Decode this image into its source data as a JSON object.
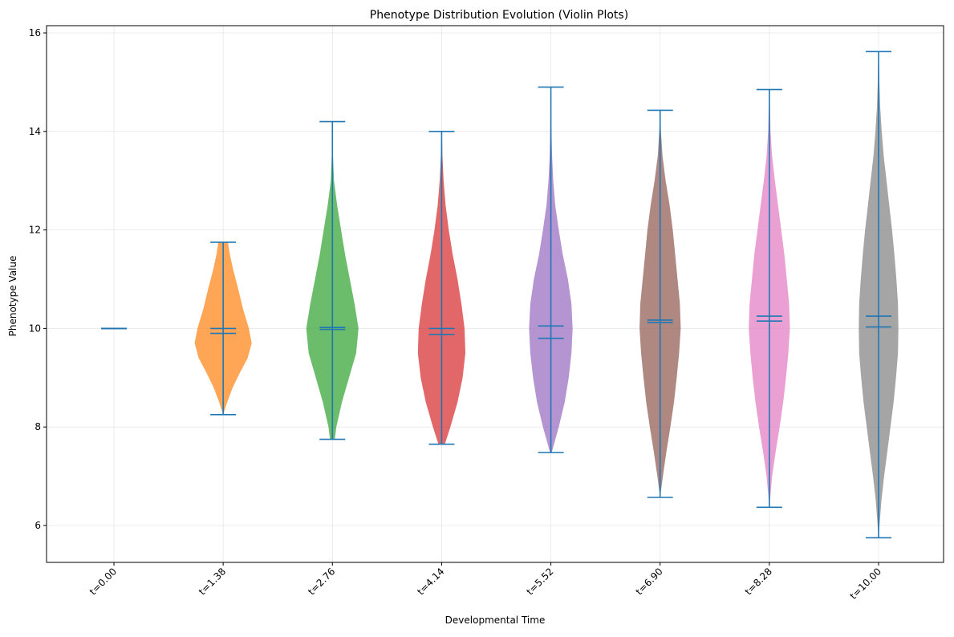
{
  "chart_data": {
    "type": "violin",
    "title": "Phenotype Distribution Evolution (Violin Plots)",
    "xlabel": "Developmental Time",
    "ylabel": "Phenotype Value",
    "ylim": [
      5.25,
      16.1
    ],
    "yticks": [
      6,
      8,
      10,
      12,
      14,
      16
    ],
    "grid": true,
    "categories": [
      "t=0.00",
      "t=1.38",
      "t=2.76",
      "t=4.14",
      "t=5.52",
      "t=6.90",
      "t=8.28",
      "t=10.00"
    ],
    "series": [
      {
        "category": "t=0.00",
        "color": "#1f77b4",
        "min": 10.0,
        "max": 10.0,
        "mean": 10.0,
        "median": 10.0,
        "density": []
      },
      {
        "category": "t=1.38",
        "color": "#ff7f0e",
        "min": 8.25,
        "max": 11.75,
        "mean": 10.0,
        "median": 9.9,
        "density": [
          [
            8.25,
            0.0
          ],
          [
            8.5,
            0.1
          ],
          [
            8.8,
            0.24
          ],
          [
            9.1,
            0.42
          ],
          [
            9.4,
            0.62
          ],
          [
            9.7,
            0.72
          ],
          [
            10.0,
            0.65
          ],
          [
            10.4,
            0.5
          ],
          [
            10.8,
            0.38
          ],
          [
            11.2,
            0.25
          ],
          [
            11.5,
            0.17
          ],
          [
            11.75,
            0.12
          ]
        ]
      },
      {
        "category": "t=2.76",
        "color": "#2ca02c",
        "min": 7.75,
        "max": 14.2,
        "mean": 10.02,
        "median": 9.98,
        "density": [
          [
            7.75,
            0.06
          ],
          [
            8.0,
            0.1
          ],
          [
            8.5,
            0.24
          ],
          [
            9.0,
            0.42
          ],
          [
            9.5,
            0.6
          ],
          [
            10.0,
            0.66
          ],
          [
            10.5,
            0.56
          ],
          [
            11.0,
            0.44
          ],
          [
            11.5,
            0.32
          ],
          [
            12.0,
            0.22
          ],
          [
            12.5,
            0.12
          ],
          [
            13.0,
            0.04
          ],
          [
            13.5,
            0.015
          ],
          [
            14.2,
            0.005
          ]
        ]
      },
      {
        "category": "t=4.14",
        "color": "#d62728",
        "min": 7.65,
        "max": 14.0,
        "mean": 10.0,
        "median": 9.88,
        "density": [
          [
            7.65,
            0.08
          ],
          [
            8.0,
            0.22
          ],
          [
            8.5,
            0.4
          ],
          [
            9.0,
            0.53
          ],
          [
            9.5,
            0.6
          ],
          [
            10.0,
            0.58
          ],
          [
            10.5,
            0.5
          ],
          [
            11.0,
            0.4
          ],
          [
            11.5,
            0.28
          ],
          [
            12.0,
            0.18
          ],
          [
            12.5,
            0.1
          ],
          [
            13.0,
            0.05
          ],
          [
            13.5,
            0.02
          ],
          [
            14.0,
            0.005
          ]
        ]
      },
      {
        "category": "t=5.52",
        "color": "#9467bd",
        "min": 7.48,
        "max": 14.9,
        "mean": 10.05,
        "median": 9.8,
        "density": [
          [
            7.48,
            0.02
          ],
          [
            8.0,
            0.2
          ],
          [
            8.5,
            0.35
          ],
          [
            9.0,
            0.45
          ],
          [
            9.5,
            0.52
          ],
          [
            10.0,
            0.55
          ],
          [
            10.5,
            0.52
          ],
          [
            11.0,
            0.43
          ],
          [
            11.5,
            0.3
          ],
          [
            12.0,
            0.2
          ],
          [
            12.5,
            0.11
          ],
          [
            13.0,
            0.06
          ],
          [
            13.5,
            0.03
          ],
          [
            14.0,
            0.015
          ],
          [
            14.9,
            0.005
          ]
        ]
      },
      {
        "category": "t=6.90",
        "color": "#8c564b",
        "min": 6.57,
        "max": 14.43,
        "mean": 10.17,
        "median": 10.12,
        "density": [
          [
            6.57,
            0.0
          ],
          [
            7.0,
            0.07
          ],
          [
            7.5,
            0.16
          ],
          [
            8.0,
            0.26
          ],
          [
            8.5,
            0.35
          ],
          [
            9.0,
            0.42
          ],
          [
            9.5,
            0.48
          ],
          [
            10.0,
            0.52
          ],
          [
            10.5,
            0.5
          ],
          [
            11.0,
            0.44
          ],
          [
            11.5,
            0.38
          ],
          [
            12.0,
            0.32
          ],
          [
            12.5,
            0.24
          ],
          [
            13.0,
            0.14
          ],
          [
            13.5,
            0.06
          ],
          [
            14.0,
            0.02
          ],
          [
            14.43,
            0.005
          ]
        ]
      },
      {
        "category": "t=8.28",
        "color": "#e377c2",
        "min": 6.37,
        "max": 14.85,
        "mean": 10.25,
        "median": 10.15,
        "density": [
          [
            6.37,
            0.0
          ],
          [
            7.0,
            0.07
          ],
          [
            7.5,
            0.16
          ],
          [
            8.0,
            0.26
          ],
          [
            8.5,
            0.35
          ],
          [
            9.0,
            0.42
          ],
          [
            9.5,
            0.48
          ],
          [
            10.0,
            0.52
          ],
          [
            10.5,
            0.5
          ],
          [
            11.0,
            0.44
          ],
          [
            11.5,
            0.38
          ],
          [
            12.0,
            0.3
          ],
          [
            12.5,
            0.22
          ],
          [
            13.0,
            0.14
          ],
          [
            13.5,
            0.07
          ],
          [
            14.0,
            0.03
          ],
          [
            14.85,
            0.005
          ]
        ]
      },
      {
        "category": "t=10.00",
        "color": "#7f7f7f",
        "min": 5.75,
        "max": 15.62,
        "mean": 10.25,
        "median": 10.03,
        "density": [
          [
            5.75,
            0.0
          ],
          [
            6.5,
            0.07
          ],
          [
            7.0,
            0.14
          ],
          [
            7.5,
            0.22
          ],
          [
            8.0,
            0.3
          ],
          [
            8.5,
            0.38
          ],
          [
            9.0,
            0.44
          ],
          [
            9.5,
            0.49
          ],
          [
            10.0,
            0.5
          ],
          [
            10.5,
            0.49
          ],
          [
            11.0,
            0.45
          ],
          [
            11.5,
            0.4
          ],
          [
            12.0,
            0.34
          ],
          [
            12.5,
            0.27
          ],
          [
            13.0,
            0.2
          ],
          [
            13.5,
            0.13
          ],
          [
            14.0,
            0.08
          ],
          [
            14.5,
            0.04
          ],
          [
            15.0,
            0.02
          ],
          [
            15.62,
            0.005
          ]
        ]
      }
    ]
  }
}
